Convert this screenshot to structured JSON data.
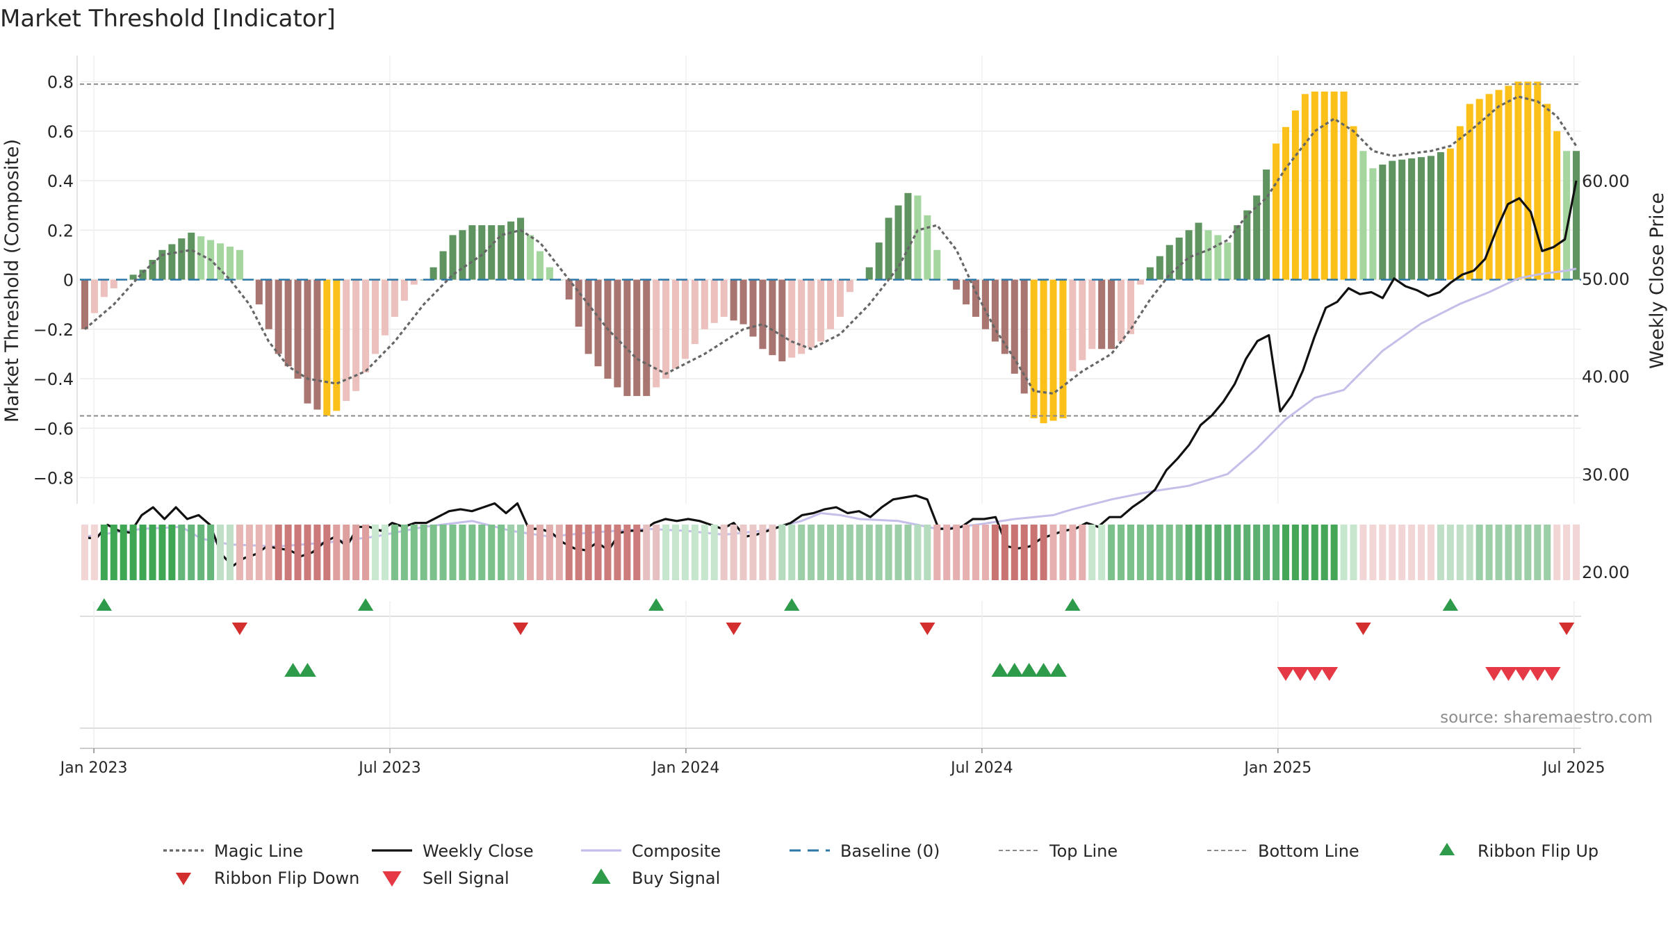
{
  "chart_data": {
    "type": "bar",
    "title": "Market Threshold [Indicator]",
    "ylabel_left": "Market Threshold (Composite)",
    "ylabel_right": "Weekly Close Price",
    "source": "source: sharemaestro.com",
    "x_ticks": [
      "Jan 2023",
      "Jul 2023",
      "Jan 2024",
      "Jul 2024",
      "Jan 2025",
      "Jul 2025"
    ],
    "x_tick_weeks": [
      1,
      27,
      53,
      79,
      105,
      131
    ],
    "y_left_ticks": [
      "0.8",
      "0.6",
      "0.4",
      "0.2",
      "0",
      "−0.2",
      "−0.4",
      "−0.6",
      "−0.8"
    ],
    "y_left_values": [
      0.8,
      0.6,
      0.4,
      0.2,
      0,
      -0.2,
      -0.4,
      -0.6,
      -0.8
    ],
    "y_right_ticks": [
      "60.00",
      "50.00",
      "40.00",
      "30.00",
      "20.00"
    ],
    "y_right_values": [
      60,
      50,
      40,
      30,
      20
    ],
    "ylim_left": [
      -0.9,
      0.9
    ],
    "ylim_right": [
      15.6,
      62.4
    ],
    "n_weeks": 145,
    "top_line": 0.79,
    "bottom_line": -0.55,
    "histogram_breaks": [
      [
        0,
        -0.2
      ],
      [
        2,
        -0.07
      ],
      [
        4,
        0.0
      ],
      [
        6,
        0.04
      ],
      [
        8,
        0.12
      ],
      [
        11,
        0.19
      ],
      [
        13,
        0.16
      ],
      [
        16,
        0.12
      ],
      [
        17,
        0.0
      ],
      [
        18,
        -0.1
      ],
      [
        20,
        -0.3
      ],
      [
        22,
        -0.4
      ],
      [
        23,
        -0.5
      ],
      [
        25,
        -0.55
      ],
      [
        26,
        -0.53
      ],
      [
        28,
        -0.45
      ],
      [
        30,
        -0.3
      ],
      [
        32,
        -0.15
      ],
      [
        34,
        -0.02
      ],
      [
        35,
        0.0
      ],
      [
        36,
        0.05
      ],
      [
        38,
        0.18
      ],
      [
        40,
        0.22
      ],
      [
        43,
        0.22
      ],
      [
        45,
        0.25
      ],
      [
        46,
        0.18
      ],
      [
        48,
        0.05
      ],
      [
        49,
        0.0
      ],
      [
        50,
        -0.08
      ],
      [
        52,
        -0.3
      ],
      [
        54,
        -0.4
      ],
      [
        56,
        -0.47
      ],
      [
        58,
        -0.47
      ],
      [
        60,
        -0.4
      ],
      [
        62,
        -0.32
      ],
      [
        64,
        -0.2
      ],
      [
        66,
        -0.15
      ],
      [
        68,
        -0.18
      ],
      [
        70,
        -0.28
      ],
      [
        72,
        -0.33
      ],
      [
        74,
        -0.3
      ],
      [
        76,
        -0.25
      ],
      [
        78,
        -0.15
      ],
      [
        79,
        -0.05
      ],
      [
        80,
        0.0
      ],
      [
        81,
        0.05
      ],
      [
        83,
        0.25
      ],
      [
        85,
        0.35
      ],
      [
        86,
        0.34
      ],
      [
        87,
        0.26
      ],
      [
        88,
        0.12
      ],
      [
        89,
        0.0
      ],
      [
        90,
        -0.04
      ],
      [
        91,
        -0.1
      ],
      [
        93,
        -0.2
      ],
      [
        95,
        -0.3
      ],
      [
        96,
        -0.38
      ],
      [
        97,
        -0.46
      ],
      [
        98,
        -0.56
      ],
      [
        99,
        -0.58
      ],
      [
        101,
        -0.56
      ],
      [
        102,
        -0.37
      ],
      [
        104,
        -0.28
      ],
      [
        106,
        -0.28
      ],
      [
        108,
        -0.22
      ],
      [
        109,
        -0.02
      ],
      [
        110,
        0.05
      ],
      [
        112,
        0.14
      ],
      [
        115,
        0.23
      ],
      [
        116,
        0.2
      ],
      [
        117,
        0.18
      ],
      [
        118,
        0.15
      ],
      [
        119,
        0.22
      ],
      [
        121,
        0.34
      ],
      [
        123,
        0.55
      ],
      [
        126,
        0.75
      ],
      [
        127,
        0.76
      ],
      [
        130,
        0.76
      ],
      [
        131,
        0.62
      ],
      [
        132,
        0.52
      ],
      [
        133,
        0.45
      ],
      [
        135,
        0.48
      ],
      [
        139,
        0.5
      ],
      [
        141,
        0.53
      ],
      [
        143,
        0.71
      ],
      [
        145,
        0.75
      ],
      [
        148,
        0.8
      ],
      [
        150,
        0.8
      ],
      [
        151,
        0.71
      ],
      [
        152,
        0.6
      ],
      [
        153,
        0.52
      ],
      [
        154,
        0.52
      ]
    ],
    "magic_line_breaks": [
      [
        0,
        -0.2
      ],
      [
        3,
        -0.1
      ],
      [
        6,
        0.03
      ],
      [
        8,
        0.1
      ],
      [
        11,
        0.12
      ],
      [
        13,
        0.08
      ],
      [
        15,
        0.0
      ],
      [
        17,
        -0.1
      ],
      [
        19,
        -0.25
      ],
      [
        21,
        -0.35
      ],
      [
        23,
        -0.4
      ],
      [
        26,
        -0.42
      ],
      [
        29,
        -0.37
      ],
      [
        32,
        -0.25
      ],
      [
        35,
        -0.1
      ],
      [
        38,
        0.02
      ],
      [
        41,
        0.1
      ],
      [
        43,
        0.18
      ],
      [
        45,
        0.2
      ],
      [
        47,
        0.15
      ],
      [
        49,
        0.05
      ],
      [
        51,
        -0.05
      ],
      [
        54,
        -0.2
      ],
      [
        57,
        -0.32
      ],
      [
        60,
        -0.38
      ],
      [
        64,
        -0.3
      ],
      [
        68,
        -0.2
      ],
      [
        70,
        -0.18
      ],
      [
        73,
        -0.25
      ],
      [
        75,
        -0.28
      ],
      [
        78,
        -0.22
      ],
      [
        81,
        -0.1
      ],
      [
        84,
        0.05
      ],
      [
        86,
        0.2
      ],
      [
        88,
        0.22
      ],
      [
        90,
        0.12
      ],
      [
        92,
        -0.05
      ],
      [
        94,
        -0.2
      ],
      [
        96,
        -0.32
      ],
      [
        98,
        -0.45
      ],
      [
        100,
        -0.46
      ],
      [
        103,
        -0.37
      ],
      [
        106,
        -0.3
      ],
      [
        108,
        -0.2
      ],
      [
        110,
        -0.08
      ],
      [
        112,
        0.02
      ],
      [
        114,
        0.09
      ],
      [
        116,
        0.12
      ],
      [
        118,
        0.16
      ],
      [
        120,
        0.26
      ],
      [
        122,
        0.33
      ],
      [
        124,
        0.45
      ],
      [
        127,
        0.6
      ],
      [
        129,
        0.65
      ],
      [
        131,
        0.6
      ],
      [
        133,
        0.52
      ],
      [
        135,
        0.5
      ],
      [
        139,
        0.52
      ],
      [
        141,
        0.54
      ],
      [
        143,
        0.6
      ],
      [
        146,
        0.7
      ],
      [
        148,
        0.74
      ],
      [
        150,
        0.72
      ],
      [
        152,
        0.66
      ],
      [
        154,
        0.54
      ]
    ],
    "weekly_close_breaks": [
      [
        0,
        23.5
      ],
      [
        1,
        23.4
      ],
      [
        2,
        24.8
      ],
      [
        3,
        24.2
      ],
      [
        4,
        24.0
      ],
      [
        5,
        25.8
      ],
      [
        6,
        26.6
      ],
      [
        7,
        25.4
      ],
      [
        8,
        26.6
      ],
      [
        9,
        25.4
      ],
      [
        10,
        25.8
      ],
      [
        11,
        24.8
      ],
      [
        12,
        21.8
      ],
      [
        13,
        20.6
      ],
      [
        14,
        21.4
      ],
      [
        15,
        21.8
      ],
      [
        16,
        22.6
      ],
      [
        17,
        22.4
      ],
      [
        18,
        22.2
      ],
      [
        19,
        21.6
      ],
      [
        20,
        22.0
      ],
      [
        21,
        23.0
      ],
      [
        22,
        23.6
      ],
      [
        23,
        22.6
      ],
      [
        24,
        24.6
      ],
      [
        25,
        24.6
      ],
      [
        26,
        24.2
      ],
      [
        27,
        25.0
      ],
      [
        28,
        24.6
      ],
      [
        29,
        25.0
      ],
      [
        30,
        25.0
      ],
      [
        31,
        25.6
      ],
      [
        32,
        26.2
      ],
      [
        33,
        26.4
      ],
      [
        34,
        26.2
      ],
      [
        35,
        26.6
      ],
      [
        36,
        27.0
      ],
      [
        37,
        26.0
      ],
      [
        38,
        27.0
      ],
      [
        39,
        24.4
      ],
      [
        40,
        24.4
      ],
      [
        41,
        24.0
      ],
      [
        42,
        23.0
      ],
      [
        43,
        22.4
      ],
      [
        44,
        22.2
      ],
      [
        45,
        23.0
      ],
      [
        46,
        22.2
      ],
      [
        47,
        24.0
      ],
      [
        48,
        24.2
      ],
      [
        49,
        24.2
      ],
      [
        50,
        25.0
      ],
      [
        51,
        25.4
      ],
      [
        52,
        25.2
      ],
      [
        53,
        25.4
      ],
      [
        54,
        25.2
      ],
      [
        55,
        24.8
      ],
      [
        56,
        24.4
      ],
      [
        57,
        25.0
      ],
      [
        58,
        23.6
      ],
      [
        59,
        23.8
      ],
      [
        60,
        24.2
      ],
      [
        61,
        24.6
      ],
      [
        62,
        25.0
      ],
      [
        63,
        25.8
      ],
      [
        64,
        26.0
      ],
      [
        65,
        26.4
      ],
      [
        66,
        26.6
      ],
      [
        67,
        26.0
      ],
      [
        68,
        26.2
      ],
      [
        69,
        25.6
      ],
      [
        70,
        26.6
      ],
      [
        71,
        27.4
      ],
      [
        72,
        27.6
      ],
      [
        73,
        27.8
      ],
      [
        74,
        27.4
      ],
      [
        75,
        24.4
      ],
      [
        76,
        24.4
      ],
      [
        77,
        24.6
      ],
      [
        78,
        25.4
      ],
      [
        79,
        25.4
      ],
      [
        80,
        25.6
      ],
      [
        81,
        22.6
      ],
      [
        82,
        22.4
      ],
      [
        83,
        22.6
      ],
      [
        84,
        23.4
      ],
      [
        85,
        23.8
      ],
      [
        86,
        24.2
      ],
      [
        87,
        24.4
      ],
      [
        88,
        25.0
      ],
      [
        89,
        24.6
      ],
      [
        90,
        25.6
      ],
      [
        91,
        25.6
      ],
      [
        92,
        26.6
      ],
      [
        93,
        27.4
      ],
      [
        94,
        28.4
      ],
      [
        95,
        30.4
      ],
      [
        96,
        31.6
      ],
      [
        97,
        33.0
      ],
      [
        98,
        35.0
      ],
      [
        99,
        36.0
      ],
      [
        100,
        37.4
      ],
      [
        101,
        39.2
      ],
      [
        102,
        41.8
      ],
      [
        103,
        43.6
      ],
      [
        104,
        44.2
      ],
      [
        105,
        36.4
      ],
      [
        106,
        38.0
      ],
      [
        107,
        40.6
      ],
      [
        108,
        44.0
      ],
      [
        109,
        47.0
      ],
      [
        110,
        47.6
      ],
      [
        111,
        49.0
      ],
      [
        112,
        48.4
      ],
      [
        113,
        48.6
      ],
      [
        114,
        48.0
      ],
      [
        115,
        50.0
      ],
      [
        116,
        49.2
      ],
      [
        117,
        48.8
      ],
      [
        118,
        48.2
      ],
      [
        119,
        48.6
      ],
      [
        120,
        49.6
      ],
      [
        121,
        50.4
      ],
      [
        122,
        50.8
      ],
      [
        123,
        52.0
      ],
      [
        124,
        55.0
      ],
      [
        125,
        57.6
      ],
      [
        126,
        58.2
      ],
      [
        127,
        56.8
      ],
      [
        128,
        52.8
      ],
      [
        129,
        53.2
      ],
      [
        130,
        54.0
      ],
      [
        131,
        60.0
      ]
    ],
    "composite_breaks": [
      [
        0,
        23.6
      ],
      [
        6,
        24.4
      ],
      [
        10,
        24.6
      ],
      [
        12,
        23.4
      ],
      [
        15,
        22.8
      ],
      [
        20,
        22.6
      ],
      [
        25,
        23.0
      ],
      [
        30,
        23.6
      ],
      [
        35,
        24.6
      ],
      [
        40,
        25.2
      ],
      [
        44,
        24.2
      ],
      [
        48,
        23.6
      ],
      [
        52,
        24.0
      ],
      [
        58,
        24.4
      ],
      [
        62,
        24.2
      ],
      [
        66,
        23.8
      ],
      [
        70,
        24.2
      ],
      [
        74,
        25.2
      ],
      [
        76,
        26.0
      ],
      [
        78,
        25.8
      ],
      [
        80,
        25.4
      ],
      [
        84,
        25.2
      ],
      [
        88,
        24.4
      ],
      [
        92,
        24.8
      ],
      [
        96,
        25.4
      ],
      [
        100,
        25.8
      ],
      [
        102,
        26.4
      ],
      [
        106,
        27.4
      ],
      [
        110,
        28.2
      ],
      [
        114,
        28.8
      ],
      [
        118,
        30.0
      ],
      [
        121,
        32.6
      ],
      [
        124,
        35.6
      ],
      [
        127,
        37.8
      ],
      [
        130,
        38.6
      ],
      [
        134,
        42.6
      ],
      [
        138,
        45.4
      ],
      [
        142,
        47.4
      ],
      [
        145,
        48.6
      ],
      [
        148,
        50.0
      ],
      [
        150,
        50.4
      ],
      [
        153,
        50.8
      ],
      [
        154,
        51.0
      ]
    ],
    "ribbon_breaks": [
      [
        0,
        "#f2d6d6"
      ],
      [
        2,
        "#3fa653"
      ],
      [
        10,
        "#66b57a"
      ],
      [
        14,
        "#bfe0c6"
      ],
      [
        16,
        "#e8b5b5"
      ],
      [
        20,
        "#cc7979"
      ],
      [
        26,
        "#de9f9f"
      ],
      [
        30,
        "#c9e8d0"
      ],
      [
        32,
        "#7cc08b"
      ],
      [
        44,
        "#9ccfaa"
      ],
      [
        46,
        "#e3aeae"
      ],
      [
        50,
        "#cd7c7c"
      ],
      [
        58,
        "#e6c0c0"
      ],
      [
        60,
        "#c6e6cd"
      ],
      [
        66,
        "#eac8c8"
      ],
      [
        72,
        "#b6dcbf"
      ],
      [
        74,
        "#9ccea8"
      ],
      [
        86,
        "#b6dcbf"
      ],
      [
        88,
        "#e6b0b0"
      ],
      [
        94,
        "#c97373"
      ],
      [
        100,
        "#e6b0b0"
      ],
      [
        104,
        "#c6e6cd"
      ],
      [
        106,
        "#7cc08b"
      ],
      [
        114,
        "#5cb06f"
      ],
      [
        124,
        "#45a658"
      ],
      [
        130,
        "#c7e6ce"
      ],
      [
        132,
        "#f2d6d6"
      ],
      [
        140,
        "#bfe0c6"
      ],
      [
        144,
        "#9ccea8"
      ],
      [
        152,
        "#f2d6d6"
      ]
    ],
    "ribbon_flip_up": [
      2,
      29,
      59,
      73,
      102,
      141
    ],
    "ribbon_flip_down": [
      16,
      45,
      67,
      87,
      132,
      153
    ],
    "buy_signals": [
      21.5,
      23,
      94.5,
      96,
      97.5,
      99,
      100.5
    ],
    "sell_signals": [
      124,
      125.5,
      127,
      128.5,
      145.5,
      147,
      148.5,
      150,
      151.5
    ],
    "legend": [
      "Magic Line",
      "Weekly Close",
      "Composite",
      "Baseline (0)",
      "Top Line",
      "Bottom Line",
      "Ribbon Flip Up",
      "Ribbon Flip Down",
      "Sell Signal",
      "Buy Signal"
    ],
    "colors": {
      "bar_pos_dark": "#5f9461",
      "bar_pos_light": "#a5d6a0",
      "bar_neg_dark": "#a87570",
      "bar_neg_light": "#ecc0bd",
      "bar_extreme": "#fbc11a",
      "weekly_close": "#111111",
      "composite": "#c4bfe9",
      "magic_line": "#666666",
      "baseline": "#2b77a8",
      "ribbon_flip_up": "#2e9b4a",
      "ribbon_flip_down": "#d32f2f",
      "buy_signal": "#2e9b4a",
      "sell_signal": "#e53945"
    }
  }
}
